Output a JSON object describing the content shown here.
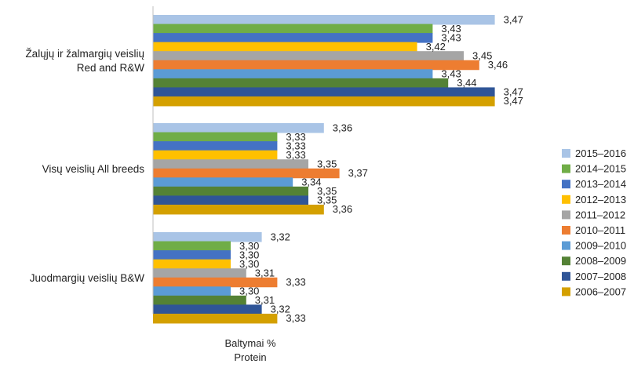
{
  "chart_data": {
    "type": "bar",
    "orientation": "horizontal",
    "categories": [
      "Žalųjų ir žalmargių veislių Red and R&W",
      "Visų veislių All breeds",
      "Juodmargių veislių B&W"
    ],
    "category_lines": [
      [
        "Žalųjų ir žalmargių veislių",
        "Red and R&W"
      ],
      [
        "Visų veislių All breeds"
      ],
      [
        "Juodmargių veislių B&W"
      ]
    ],
    "series": [
      {
        "name": "2015–2016",
        "color": "#A9C4E6",
        "values": [
          3.47,
          3.36,
          3.32
        ],
        "labels": [
          "3,47",
          "3,36",
          "3,32"
        ]
      },
      {
        "name": "2014–2015",
        "color": "#70AD47",
        "values": [
          3.43,
          3.33,
          3.3
        ],
        "labels": [
          "3,43",
          "3,33",
          "3,30"
        ]
      },
      {
        "name": "2013–2014",
        "color": "#4472C4",
        "values": [
          3.43,
          3.33,
          3.3
        ],
        "labels": [
          "3,43",
          "3,33",
          "3,30"
        ]
      },
      {
        "name": "2012–2013",
        "color": "#FFC000",
        "values": [
          3.42,
          3.33,
          3.3
        ],
        "labels": [
          "3,42",
          "3,33",
          "3,30"
        ]
      },
      {
        "name": "2011–2012",
        "color": "#A5A5A5",
        "values": [
          3.45,
          3.35,
          3.31
        ],
        "labels": [
          "3,45",
          "3,35",
          "3,31"
        ]
      },
      {
        "name": "2010–2011",
        "color": "#ED7D31",
        "values": [
          3.46,
          3.37,
          3.33
        ],
        "labels": [
          "3,46",
          "3,37",
          "3,33"
        ]
      },
      {
        "name": "2009–2010",
        "color": "#5B9BD5",
        "values": [
          3.43,
          3.34,
          3.3
        ],
        "labels": [
          "3,43",
          "3,34",
          "3,30"
        ]
      },
      {
        "name": "2008–2009",
        "color": "#548235",
        "values": [
          3.44,
          3.35,
          3.31
        ],
        "labels": [
          "3,44",
          "3,35",
          "3,31"
        ]
      },
      {
        "name": "2007–2008",
        "color": "#2F5597",
        "values": [
          3.47,
          3.35,
          3.32
        ],
        "labels": [
          "3,47",
          "3,35",
          "3,32"
        ]
      },
      {
        "name": "2006–2007",
        "color": "#D4A000",
        "values": [
          3.47,
          3.36,
          3.33
        ],
        "labels": [
          "3,47",
          "3,36",
          "3,33"
        ]
      }
    ],
    "xlim": [
      3.25,
      3.48
    ],
    "xlabel_lines": [
      "Baltymai %",
      "Protein"
    ],
    "legend_position": "right",
    "grid": false
  }
}
